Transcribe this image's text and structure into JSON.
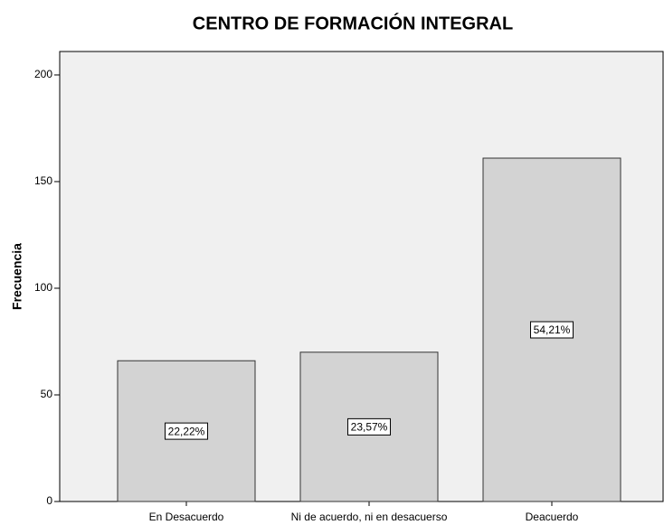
{
  "chart_data": {
    "type": "bar",
    "title": "CENTRO DE FORMACIÓN INTEGRAL",
    "y_label": "Frecuencia",
    "categories": [
      "En Desacuerdo",
      "Ni de acuerdo, ni en desacuerso",
      "Deacuerdo"
    ],
    "values": [
      66,
      70,
      161
    ],
    "percentages": [
      22.22,
      23.57,
      54.21
    ],
    "percentage_labels": [
      "22,22%",
      "23,57%",
      "54,21%"
    ],
    "color": "#d3d3d3",
    "ylim": [
      0,
      211
    ],
    "yticks": [
      0,
      50,
      100,
      150,
      200
    ],
    "grid": false
  }
}
